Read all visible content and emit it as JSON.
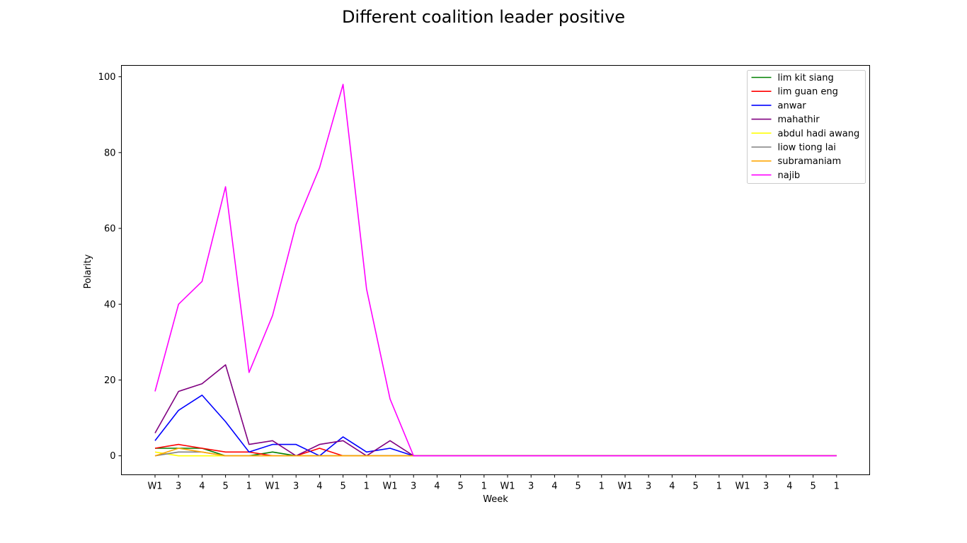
{
  "chart_data": {
    "type": "line",
    "title": "Different coalition leader positive",
    "xlabel": "Week",
    "ylabel": "Polarity",
    "ylim": [
      -5,
      103
    ],
    "yticks": [
      0,
      20,
      40,
      60,
      80,
      100
    ],
    "categories": [
      "W1",
      "3",
      "4",
      "5",
      "1",
      "W1",
      "3",
      "4",
      "5",
      "1",
      "W1",
      "3",
      "4",
      "5",
      "1",
      "W1",
      "3",
      "4",
      "5",
      "1",
      "W1",
      "3",
      "4",
      "5",
      "1",
      "W1",
      "3",
      "4",
      "5",
      "1"
    ],
    "legend_position": "top-right",
    "grid": false,
    "series": [
      {
        "name": "lim kit siang",
        "color": "#008000",
        "values": [
          2,
          2,
          2,
          0,
          0,
          1,
          0,
          0,
          0,
          0,
          0,
          0,
          0,
          0,
          0,
          0,
          0,
          0,
          0,
          0,
          0,
          0,
          0,
          0,
          0,
          0,
          0,
          0,
          0,
          0
        ]
      },
      {
        "name": "lim guan eng",
        "color": "#ff0000",
        "values": [
          2,
          3,
          2,
          1,
          1,
          0,
          0,
          2,
          0,
          0,
          0,
          0,
          0,
          0,
          0,
          0,
          0,
          0,
          0,
          0,
          0,
          0,
          0,
          0,
          0,
          0,
          0,
          0,
          0,
          0
        ]
      },
      {
        "name": "anwar",
        "color": "#0000ff",
        "values": [
          4,
          12,
          16,
          9,
          1,
          3,
          3,
          0,
          5,
          1,
          2,
          0,
          0,
          0,
          0,
          0,
          0,
          0,
          0,
          0,
          0,
          0,
          0,
          0,
          0,
          0,
          0,
          0,
          0,
          0
        ]
      },
      {
        "name": "mahathir",
        "color": "#800080",
        "values": [
          6,
          17,
          19,
          24,
          3,
          4,
          0,
          3,
          4,
          0,
          4,
          0,
          0,
          0,
          0,
          0,
          0,
          0,
          0,
          0,
          0,
          0,
          0,
          0,
          0,
          0,
          0,
          0,
          0,
          0
        ]
      },
      {
        "name": "abdul hadi awang",
        "color": "#ffff00",
        "values": [
          1,
          0,
          0,
          0,
          0,
          0,
          0,
          0,
          0,
          0,
          0,
          0,
          0,
          0,
          0,
          0,
          0,
          0,
          0,
          0,
          0,
          0,
          0,
          0,
          0,
          0,
          0,
          0,
          0,
          0
        ]
      },
      {
        "name": "liow tiong lai",
        "color": "#808080",
        "values": [
          0,
          1,
          1,
          0,
          0,
          0,
          0,
          0,
          0,
          0,
          0,
          0,
          0,
          0,
          0,
          0,
          0,
          0,
          0,
          0,
          0,
          0,
          0,
          0,
          0,
          0,
          0,
          0,
          0,
          0
        ]
      },
      {
        "name": "subramaniam",
        "color": "#ffa500",
        "values": [
          0,
          2,
          1,
          0,
          0,
          0,
          0,
          0,
          0,
          0,
          0,
          0,
          0,
          0,
          0,
          0,
          0,
          0,
          0,
          0,
          0,
          0,
          0,
          0,
          0,
          0,
          0,
          0,
          0,
          0
        ]
      },
      {
        "name": "najib",
        "color": "#ff00ff",
        "values": [
          17,
          40,
          46,
          71,
          22,
          37,
          61,
          76,
          98,
          44,
          15,
          0,
          0,
          0,
          0,
          0,
          0,
          0,
          0,
          0,
          0,
          0,
          0,
          0,
          0,
          0,
          0,
          0,
          0,
          0
        ]
      }
    ]
  }
}
